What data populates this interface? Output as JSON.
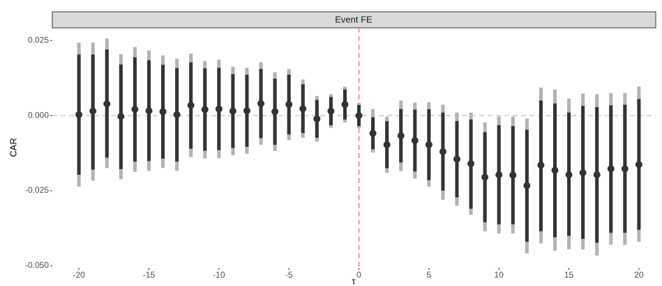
{
  "chart_data": {
    "type": "errorbar",
    "panel_title": "Event FE",
    "x_label": "τ",
    "y_label": "CAR",
    "x": [
      -20,
      -19,
      -18,
      -17,
      -16,
      -15,
      -14,
      -13,
      -12,
      -11,
      -10,
      -9,
      -8,
      -7,
      -6,
      -5,
      -4,
      -3,
      -2,
      -1,
      0,
      1,
      2,
      3,
      4,
      5,
      6,
      7,
      8,
      9,
      10,
      11,
      12,
      13,
      14,
      15,
      16,
      17,
      18,
      19,
      20
    ],
    "estimate": [
      0.0003,
      0.0015,
      0.0039,
      -0.0003,
      0.0021,
      0.0016,
      0.0013,
      0.0003,
      0.0034,
      0.002,
      0.0022,
      0.0015,
      0.0016,
      0.004,
      0.0013,
      0.0037,
      0.0023,
      -0.0011,
      0.0015,
      0.0037,
      0.0,
      -0.0059,
      -0.0097,
      -0.0067,
      -0.0083,
      -0.0097,
      -0.012,
      -0.0145,
      -0.016,
      -0.0205,
      -0.0197,
      -0.0198,
      -0.0233,
      -0.0165,
      -0.0182,
      -0.0197,
      -0.019,
      -0.0197,
      -0.0177,
      -0.0177,
      -0.0163
    ],
    "inner_low": [
      -0.0197,
      -0.018,
      -0.014,
      -0.0178,
      -0.0153,
      -0.0151,
      -0.0143,
      -0.0153,
      -0.011,
      -0.0117,
      -0.0115,
      -0.0108,
      -0.0104,
      -0.0075,
      -0.0097,
      -0.0063,
      -0.0058,
      -0.0074,
      -0.0032,
      -0.0013,
      -0.0035,
      -0.0112,
      -0.0175,
      -0.0156,
      -0.0186,
      -0.0215,
      -0.025,
      -0.0272,
      -0.031,
      -0.0355,
      -0.0362,
      -0.0362,
      -0.042,
      -0.0385,
      -0.0405,
      -0.04,
      -0.041,
      -0.0423,
      -0.039,
      -0.039,
      -0.038
    ],
    "inner_high": [
      0.0203,
      0.0203,
      0.022,
      0.017,
      0.0194,
      0.0184,
      0.0169,
      0.0158,
      0.0177,
      0.0157,
      0.0159,
      0.0138,
      0.0136,
      0.0155,
      0.0123,
      0.0136,
      0.0104,
      0.0052,
      0.0062,
      0.0087,
      0.0035,
      -0.0006,
      -0.0019,
      0.0022,
      0.002,
      0.0021,
      0.001,
      -0.0018,
      -0.0013,
      -0.0055,
      -0.0032,
      -0.0035,
      -0.0047,
      0.005,
      0.004,
      0.001,
      0.0032,
      0.0028,
      0.0034,
      0.0036,
      0.0055
    ],
    "outer_low": [
      -0.0236,
      -0.0217,
      -0.0175,
      -0.0212,
      -0.0187,
      -0.0184,
      -0.0174,
      -0.0184,
      -0.0138,
      -0.0143,
      -0.0142,
      -0.0132,
      -0.0127,
      -0.0097,
      -0.0118,
      -0.0082,
      -0.0074,
      -0.0087,
      -0.0041,
      -0.0023,
      -0.0042,
      -0.0123,
      -0.019,
      -0.0185,
      -0.021,
      -0.0237,
      -0.028,
      -0.03,
      -0.033,
      -0.0385,
      -0.0392,
      -0.0392,
      -0.0459,
      -0.0425,
      -0.045,
      -0.0445,
      -0.0445,
      -0.0466,
      -0.043,
      -0.043,
      -0.042
    ],
    "outer_high": [
      0.0243,
      0.0243,
      0.0256,
      0.0204,
      0.0228,
      0.0217,
      0.02,
      0.0189,
      0.0206,
      0.0182,
      0.0186,
      0.0162,
      0.0159,
      0.0177,
      0.0144,
      0.0155,
      0.012,
      0.0065,
      0.0071,
      0.0096,
      0.0042,
      0.0022,
      -0.0004,
      0.005,
      0.0043,
      0.0044,
      0.0036,
      0.001,
      0.001,
      -0.0023,
      -0.0003,
      -0.0003,
      -0.001,
      0.0093,
      0.0087,
      0.0057,
      0.0073,
      0.0071,
      0.0075,
      0.0075,
      0.0097
    ],
    "inner_color": "#333333",
    "outer_color": "#b3b3b3",
    "point_color": "#333333",
    "hline": 0,
    "hline_color": "#cccccc",
    "vline": 0,
    "vline_color": "#e8787a",
    "xlim": [
      -21.9,
      21.2
    ],
    "ylim": [
      -0.0507,
      0.0292
    ],
    "xticks": [
      -20,
      -15,
      -10,
      -5,
      0,
      5,
      10,
      15,
      20
    ],
    "yticks": [
      {
        "value": -0.05,
        "label": "-0.050"
      },
      -0.025,
      {
        "value": 0,
        "label": "0.000"
      },
      0.025
    ]
  }
}
